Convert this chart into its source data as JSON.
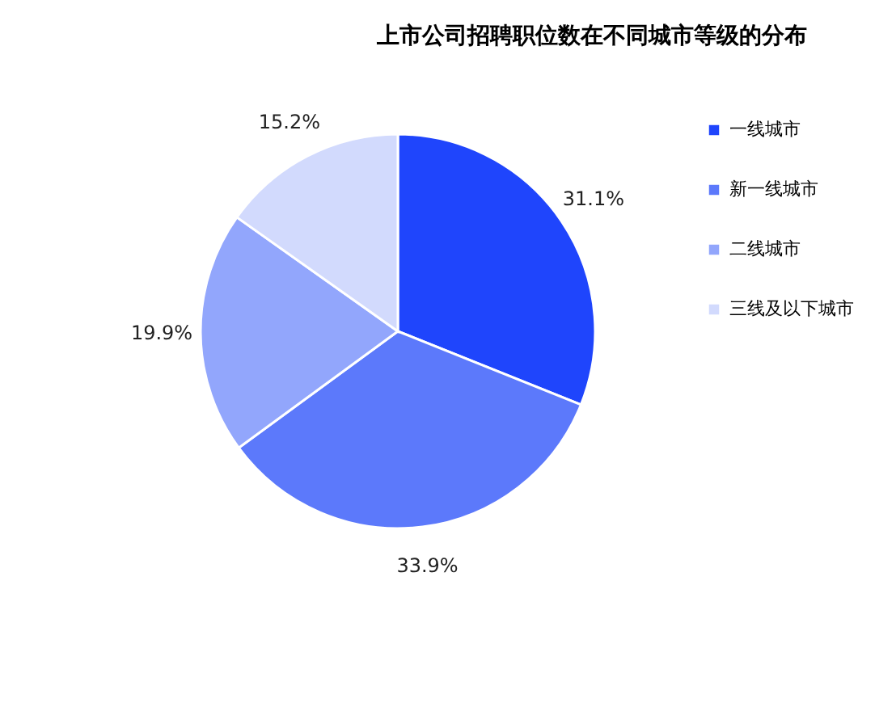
{
  "chart_data": {
    "type": "pie",
    "title": "上市公司招聘职位数在不同城市等级的分布",
    "categories": [
      "一线城市",
      "新一线城市",
      "二线城市",
      "三线及以下城市"
    ],
    "values": [
      31.1,
      33.9,
      19.9,
      15.2
    ],
    "value_labels": [
      "31.1%",
      "33.9%",
      "19.9%",
      "15.2%"
    ],
    "colors": [
      "#1f45fc",
      "#5c79fb",
      "#92a6fc",
      "#d2dafd"
    ],
    "legend": "right"
  }
}
